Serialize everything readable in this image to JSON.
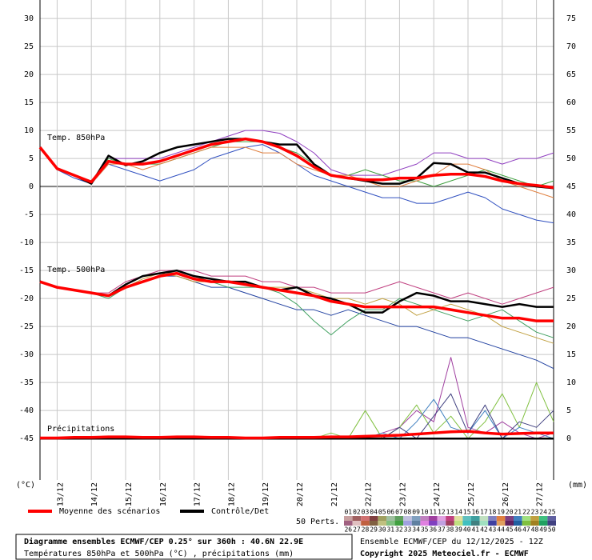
{
  "chart_data": {
    "type": "line",
    "title": "Diagramme ensembles ECMWF/CEP 0.25° sur 360h : 40.6N 22.9E",
    "subtitle": "Températures 850hPa et 500hPa (°C) , précipitations (mm)",
    "run_label": "Ensemble ECMWF/CEP du 12/12/2025 - 12Z",
    "copyright": "Copyright 2025 Meteociel.fr - ECMWF",
    "y_label": "(°C)",
    "y2_label": "(mm)",
    "annotations": [
      "Temp. 850hPa",
      "Temp. 500hPa",
      "Précipitations"
    ],
    "legend": [
      {
        "name": "Moyenne des scénarios",
        "color": "#ff0000"
      },
      {
        "name": "Contrôle/Det",
        "color": "#000000"
      }
    ],
    "perturbations": {
      "label": "50 Perts.",
      "members": [
        {
          "label": "01",
          "color": "#c8a0a0"
        },
        {
          "label": "02",
          "color": "#a06060"
        },
        {
          "label": "03",
          "color": "#d07070"
        },
        {
          "label": "04",
          "color": "#804040"
        },
        {
          "label": "05",
          "color": "#a0a060"
        },
        {
          "label": "06",
          "color": "#a0c0a0"
        },
        {
          "label": "07",
          "color": "#60a060"
        },
        {
          "label": "08",
          "color": "#c0c0e0"
        },
        {
          "label": "09",
          "color": "#80a0c0"
        },
        {
          "label": "10",
          "color": "#c080c0"
        },
        {
          "label": "11",
          "color": "#a040a0"
        },
        {
          "label": "12",
          "color": "#e0a0e0"
        },
        {
          "label": "13",
          "color": "#c04080"
        },
        {
          "label": "14",
          "color": "#e0e0a0"
        },
        {
          "label": "15",
          "color": "#60c0c0"
        },
        {
          "label": "16",
          "color": "#40a0a0"
        },
        {
          "label": "17",
          "color": "#c0e0c0"
        },
        {
          "label": "18",
          "color": "#8080c0"
        },
        {
          "label": "19",
          "color": "#e08040"
        },
        {
          "label": "20",
          "color": "#804080"
        },
        {
          "label": "21",
          "color": "#4080c0"
        },
        {
          "label": "22",
          "color": "#a0e080"
        },
        {
          "label": "23",
          "color": "#c0a040"
        },
        {
          "label": "24",
          "color": "#40c080"
        },
        {
          "label": "25",
          "color": "#6060a0"
        },
        {
          "label": "26",
          "color": "#a06080"
        },
        {
          "label": "27",
          "color": "#e0c0c0"
        },
        {
          "label": "28",
          "color": "#c06040"
        },
        {
          "label": "29",
          "color": "#806040"
        },
        {
          "label": "30",
          "color": "#c0c080"
        },
        {
          "label": "31",
          "color": "#80c080"
        },
        {
          "label": "32",
          "color": "#40a040"
        },
        {
          "label": "33",
          "color": "#a0a0e0"
        },
        {
          "label": "34",
          "color": "#6080a0"
        },
        {
          "label": "35",
          "color": "#e080e0"
        },
        {
          "label": "36",
          "color": "#8040c0"
        },
        {
          "label": "37",
          "color": "#c0a0e0"
        },
        {
          "label": "38",
          "color": "#a04060"
        },
        {
          "label": "39",
          "color": "#c0e080"
        },
        {
          "label": "40",
          "color": "#40c0c0"
        },
        {
          "label": "41",
          "color": "#408080"
        },
        {
          "label": "42",
          "color": "#a0e0c0"
        },
        {
          "label": "43",
          "color": "#4040a0"
        },
        {
          "label": "44",
          "color": "#e0a060"
        },
        {
          "label": "45",
          "color": "#602060"
        },
        {
          "label": "46",
          "color": "#2060a0"
        },
        {
          "label": "47",
          "color": "#80c040"
        },
        {
          "label": "48",
          "color": "#a08020"
        },
        {
          "label": "49",
          "color": "#20a060"
        },
        {
          "label": "50",
          "color": "#404080"
        }
      ]
    },
    "x": [
      0,
      12,
      24,
      36,
      48,
      60,
      72,
      84,
      96,
      108,
      120,
      132,
      144,
      156,
      168,
      180,
      192,
      204,
      216,
      228,
      240,
      252,
      264,
      276,
      288,
      300,
      312,
      324,
      336,
      348,
      360
    ],
    "xlim": [
      0,
      360
    ],
    "xticks": [
      {
        "value": 12,
        "label": "13/12"
      },
      {
        "value": 36,
        "label": "14/12"
      },
      {
        "value": 60,
        "label": "15/12"
      },
      {
        "value": 84,
        "label": "16/12"
      },
      {
        "value": 108,
        "label": "17/12"
      },
      {
        "value": 132,
        "label": "18/12"
      },
      {
        "value": 156,
        "label": "19/12"
      },
      {
        "value": 180,
        "label": "20/12"
      },
      {
        "value": 204,
        "label": "21/12"
      },
      {
        "value": 228,
        "label": "22/12"
      },
      {
        "value": 252,
        "label": "23/12"
      },
      {
        "value": 276,
        "label": "24/12"
      },
      {
        "value": 300,
        "label": "25/12"
      },
      {
        "value": 324,
        "label": "26/12"
      },
      {
        "value": 348,
        "label": "27/12"
      }
    ],
    "ylim": [
      -52.4,
      33.3
    ],
    "yticks": [
      30,
      25,
      20,
      15,
      10,
      5,
      0,
      -5,
      -10,
      -15,
      -20,
      -25,
      -30,
      -35,
      -40,
      -45
    ],
    "y2lim": [
      -7.4,
      78.3
    ],
    "y2ticks": [
      75,
      70,
      65,
      60,
      55,
      50,
      45,
      40,
      35,
      30,
      25,
      20,
      15,
      10,
      5,
      0
    ],
    "grid": true,
    "zero_line": true,
    "series": [
      {
        "color": "#9040c0",
        "values": [
          7,
          3,
          2,
          1,
          5,
          5,
          5,
          5,
          6,
          7,
          8,
          9,
          10,
          10,
          9.5,
          8,
          6,
          3,
          2,
          2,
          2,
          3,
          4,
          6,
          6,
          5,
          5,
          4,
          5,
          5,
          6
        ]
      },
      {
        "color": "#3050c0",
        "values": [
          7,
          3,
          1.5,
          0.5,
          4,
          3,
          2,
          1,
          2,
          3,
          5,
          6,
          7,
          7.5,
          6,
          4,
          2,
          1,
          0,
          -1,
          -2,
          -2,
          -3,
          -3,
          -2,
          -1,
          -2,
          -4,
          -5,
          -6,
          -6.5
        ]
      },
      {
        "color": "#40a040",
        "values": [
          7,
          3,
          2,
          1,
          5,
          4,
          4,
          4,
          5,
          6,
          7,
          8,
          8,
          8,
          7,
          6,
          4,
          2,
          2,
          3,
          2,
          1,
          1,
          0,
          1,
          2,
          3,
          2,
          1,
          0,
          1
        ]
      },
      {
        "color": "#e08040",
        "values": [
          7,
          3,
          2,
          0.5,
          4,
          4,
          3,
          4,
          5,
          6,
          7,
          7,
          7,
          6,
          6,
          4,
          3,
          2,
          2,
          1,
          0,
          0,
          1,
          2,
          4,
          4,
          3,
          1,
          0,
          -1,
          -2
        ]
      },
      {
        "color": "#c04080",
        "values": [
          -17,
          -18,
          -18.5,
          -19,
          -19,
          -17,
          -16,
          -15,
          -15,
          -15,
          -16,
          -16,
          -16,
          -17,
          -17,
          -18,
          -18,
          -19,
          -19,
          -19,
          -18,
          -17,
          -18,
          -19,
          -20,
          -19,
          -20,
          -21,
          -20,
          -19,
          -18
        ]
      },
      {
        "color": "#2040a0",
        "values": [
          -17,
          -18,
          -18.5,
          -19,
          -19.5,
          -18,
          -17,
          -16,
          -16,
          -17,
          -18,
          -18,
          -19,
          -20,
          -21,
          -22,
          -22,
          -23,
          -22,
          -23,
          -24,
          -25,
          -25,
          -26,
          -27,
          -27,
          -28,
          -29,
          -30,
          -31,
          -32.5
        ]
      },
      {
        "color": "#40a060",
        "values": [
          -17,
          -18,
          -18.5,
          -19,
          -20,
          -18,
          -17,
          -16,
          -15,
          -16,
          -17,
          -18,
          -18,
          -18,
          -19,
          -21,
          -24,
          -26.5,
          -24,
          -22,
          -22,
          -20,
          -21,
          -22,
          -23,
          -24,
          -23,
          -22,
          -24,
          -26,
          -27
        ]
      },
      {
        "color": "#c0a040",
        "values": [
          -17,
          -18,
          -18.5,
          -19,
          -19.5,
          -18,
          -16.5,
          -15.5,
          -16,
          -17,
          -17,
          -17,
          -17,
          -18,
          -18,
          -18,
          -19,
          -20,
          -20,
          -21,
          -20,
          -21,
          -23,
          -22,
          -21,
          -22,
          -23,
          -25,
          -26,
          -27,
          -28
        ]
      },
      {
        "color": "#a040a0",
        "axis": "y2",
        "values": [
          0,
          0,
          0,
          0,
          0,
          0,
          0,
          0,
          0,
          0,
          0,
          0,
          0,
          0,
          0,
          0,
          0,
          0,
          0,
          0,
          1,
          2,
          5,
          3,
          14.5,
          2,
          1,
          3,
          1,
          0,
          1
        ]
      },
      {
        "color": "#80c040",
        "axis": "y2",
        "values": [
          0,
          0,
          0,
          0,
          0,
          0,
          0,
          0,
          0,
          0,
          0,
          0,
          0,
          0,
          0,
          0,
          0,
          1,
          0,
          5,
          0,
          2,
          6,
          1,
          4,
          0,
          3,
          8,
          2,
          10,
          3
        ]
      },
      {
        "color": "#4080c0",
        "axis": "y2",
        "values": [
          0,
          0,
          0,
          0,
          0,
          0,
          0,
          0,
          0,
          0,
          0,
          0,
          0,
          0,
          0,
          0,
          0,
          0,
          0,
          0,
          1,
          0,
          3,
          7,
          2,
          1,
          5,
          0,
          2,
          1,
          0
        ]
      },
      {
        "color": "#404080",
        "axis": "y2",
        "values": [
          0,
          0,
          0,
          0,
          0,
          0,
          0,
          0,
          0,
          0,
          0,
          0,
          0,
          0,
          0,
          0,
          0,
          0,
          0,
          0,
          0,
          2,
          0,
          4,
          8,
          1,
          6,
          0,
          3,
          2,
          5
        ]
      },
      {
        "color": "#000000",
        "role": "control",
        "values": [
          7,
          3.2,
          2,
          0.5,
          5.5,
          3.8,
          4.5,
          6,
          7,
          7.5,
          8,
          8.5,
          8.5,
          8,
          7.5,
          7.5,
          4,
          2,
          1.5,
          1,
          0.5,
          0.5,
          1.5,
          4.2,
          4,
          2.5,
          2.5,
          1.5,
          0.5,
          0,
          -0.3
        ]
      },
      {
        "color": "#ff0000",
        "role": "mean",
        "values": [
          7,
          3.2,
          2,
          0.8,
          4.5,
          4,
          4,
          4.5,
          5.5,
          6.5,
          7.5,
          8,
          8.5,
          8,
          7,
          5.5,
          3.5,
          2,
          1.5,
          1.2,
          1.2,
          1.5,
          1.5,
          2,
          2.2,
          2.2,
          1.8,
          1,
          0.5,
          0.2,
          -0.2
        ]
      },
      {
        "color": "#000000",
        "role": "control",
        "values": [
          -17,
          -18,
          -18.5,
          -19,
          -19.5,
          -17.5,
          -16,
          -15.5,
          -15,
          -16,
          -16.5,
          -17,
          -17,
          -18,
          -18.5,
          -18,
          -19.5,
          -20,
          -21,
          -22.5,
          -22.5,
          -20.5,
          -19,
          -19.5,
          -20.5,
          -20.5,
          -21,
          -21.5,
          -21,
          -21.5,
          -21.5
        ]
      },
      {
        "color": "#ff0000",
        "role": "mean",
        "values": [
          -17,
          -18,
          -18.5,
          -19,
          -19.5,
          -18,
          -17,
          -16,
          -15.5,
          -16.5,
          -17,
          -17,
          -17.5,
          -18,
          -18.5,
          -19,
          -19.5,
          -20.5,
          -21,
          -21.5,
          -21.5,
          -21.5,
          -21.5,
          -21.5,
          -22,
          -22.5,
          -23,
          -23.5,
          -23.5,
          -24,
          -24
        ]
      },
      {
        "color": "#000000",
        "role": "control",
        "axis": "y2",
        "values": [
          0,
          0,
          0,
          0,
          0,
          0,
          0,
          0,
          0,
          0,
          0,
          0,
          0,
          0,
          0,
          0,
          0,
          0,
          0,
          0,
          0,
          0,
          0,
          0,
          0,
          0,
          0,
          0,
          0,
          0,
          0
        ]
      },
      {
        "color": "#ff0000",
        "role": "mean",
        "axis": "y2",
        "values": [
          0.1,
          0.1,
          0.2,
          0.2,
          0.3,
          0.3,
          0.2,
          0.2,
          0.3,
          0.3,
          0.2,
          0.2,
          0.1,
          0.1,
          0.2,
          0.2,
          0.2,
          0.3,
          0.3,
          0.4,
          0.5,
          0.6,
          0.8,
          1,
          1.2,
          1.3,
          1,
          0.8,
          0.9,
          1,
          1
        ]
      }
    ]
  }
}
